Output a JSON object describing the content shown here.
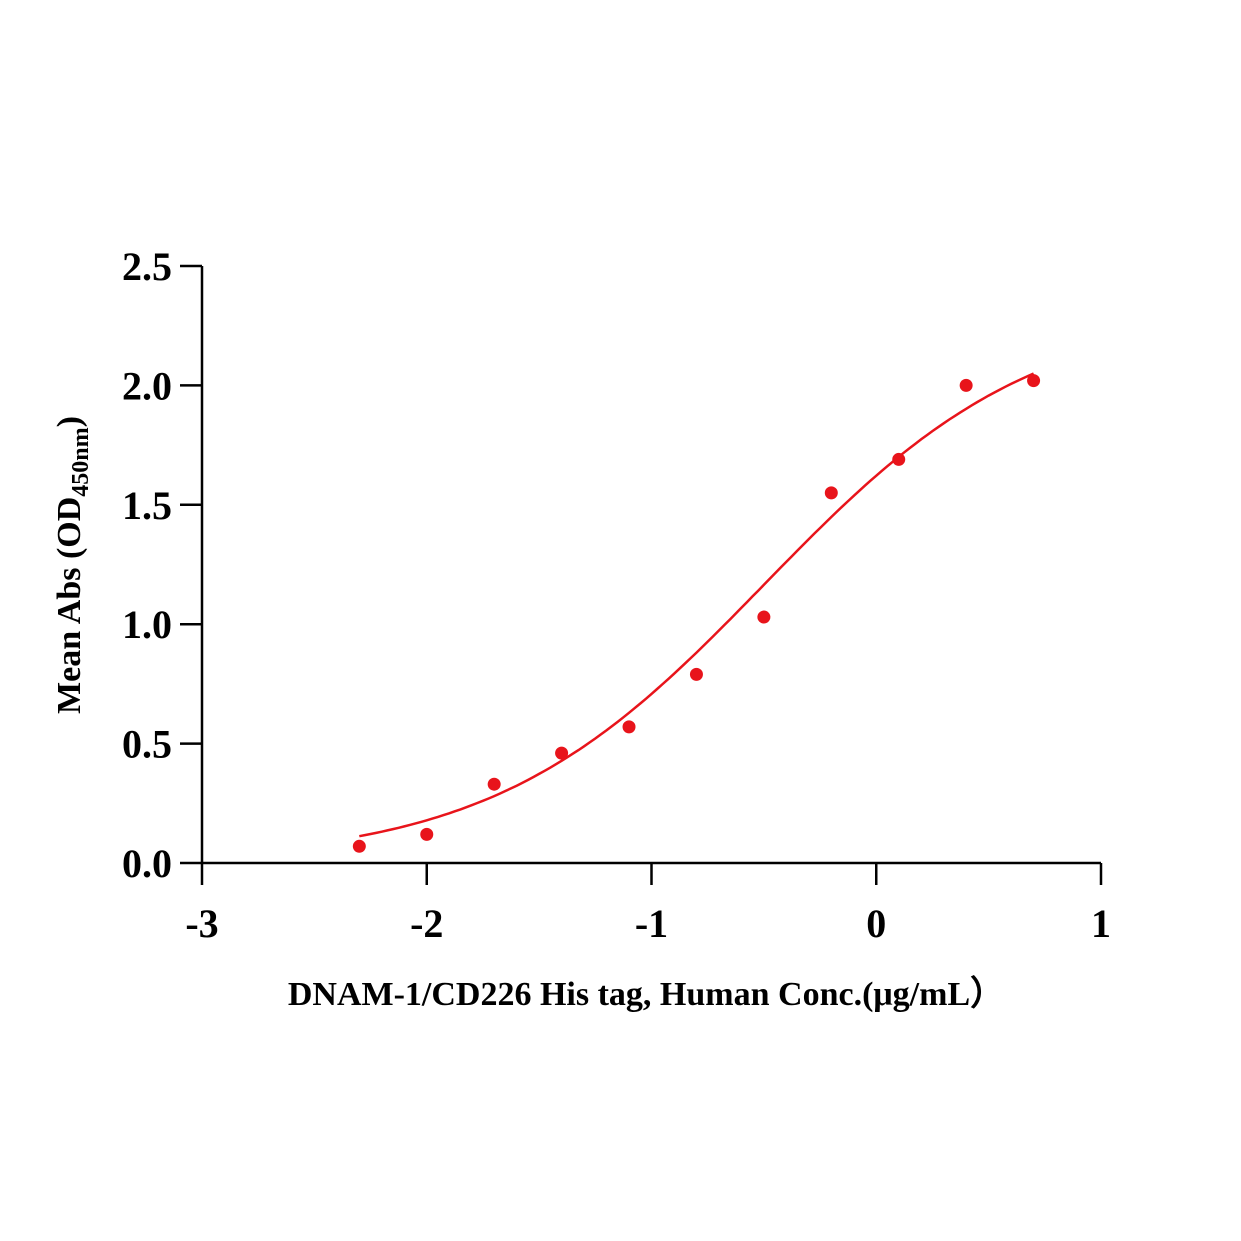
{
  "chart_data": {
    "type": "scatter",
    "title": "",
    "xlabel": "DNAM-1/CD226 His tag, Human  Conc.(μg/mL）",
    "ylabel_main": "Mean Abs (OD",
    "ylabel_sub": "450nm",
    "ylabel_close": ")",
    "xlim": [
      -3,
      1
    ],
    "ylim": [
      0,
      2.5
    ],
    "xticks": [
      -3,
      -2,
      -1,
      0,
      1
    ],
    "xtick_labels": [
      "-3",
      "-2",
      "-1",
      "0",
      "1"
    ],
    "yticks": [
      0,
      0.5,
      1,
      1.5,
      2,
      2.5
    ],
    "ytick_labels": [
      "0.0",
      "0.5",
      "1.0",
      "1.5",
      "2.0",
      "2.5"
    ],
    "grid": false,
    "series": [
      {
        "name": "data",
        "color": "#e8141b",
        "x": [
          -2.3,
          -2.0,
          -1.7,
          -1.4,
          -1.1,
          -0.8,
          -0.5,
          -0.2,
          0.1,
          0.4,
          0.7
        ],
        "y": [
          0.07,
          0.12,
          0.33,
          0.46,
          0.57,
          0.79,
          1.03,
          1.55,
          1.69,
          2.0,
          2.02
        ]
      }
    ],
    "fit": {
      "type": "4PL",
      "color": "#e8141b",
      "bottom": 0.0,
      "top": 2.33,
      "logEC50": -0.5,
      "hill": 0.72,
      "x_range": [
        -2.3,
        0.7
      ]
    }
  }
}
